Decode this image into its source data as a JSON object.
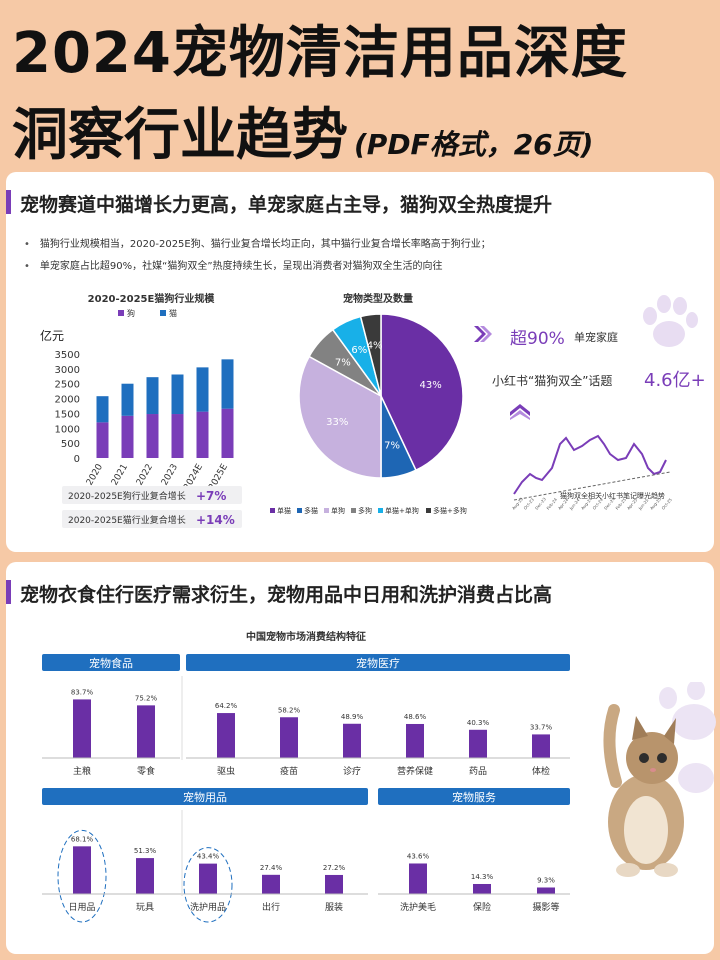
{
  "header": {
    "title_line1": "2024宠物清洁用品深度",
    "title_line2": "洞察行业趋势",
    "title_suffix": "(PDF格式，26页)"
  },
  "section1": {
    "heading": "宠物赛道中猫增长力更高，单宠家庭占主导，猫狗双全热度提升",
    "bullets": [
      "猫狗行业规模相当，2020-2025E狗、猫行业复合增长均正向，其中猫行业复合增长率略高于狗行业；",
      "单宠家庭占比超90%，社媒“猫狗双全”热度持续生长，呈现出消费者对猫狗双全生活的向往"
    ],
    "bar_notes": [
      {
        "text": "2020-2025E狗行业复合增长",
        "value": "+7%"
      },
      {
        "text": "2020-2025E猫行业复合增长",
        "value": "+14%"
      }
    ],
    "stats": {
      "single_prefix": "超90%",
      "single_label": "单宠家庭",
      "xhs_label": "小红书“猫狗双全”话题",
      "xhs_value": "4.6亿+",
      "trend_label": "猫狗双全相关小红书笔记曝光趋势",
      "trend_xticks": [
        "Aug-23",
        "Oct-23",
        "Dec-23",
        "Feb-24",
        "Apr-24",
        "Jun-24",
        "Aug-24",
        "Oct-24",
        "Dec-24",
        "Feb-25",
        "Apr-25",
        "Jun-25",
        "Aug-25",
        "Oct-25"
      ]
    }
  },
  "chart_data": [
    {
      "type": "bar",
      "title": "2020-2025E猫狗行业规模",
      "ylabel": "亿元",
      "categories": [
        "2020",
        "2021",
        "2022",
        "2023",
        "2024E",
        "2025E"
      ],
      "ylim": [
        0,
        3500
      ],
      "yticks": [
        0,
        500,
        1000,
        1500,
        2000,
        2500,
        3000,
        3500
      ],
      "stacked": true,
      "series": [
        {
          "name": "狗",
          "color": "#7a3db8",
          "values": [
            1200,
            1420,
            1480,
            1480,
            1560,
            1660
          ]
        },
        {
          "name": "猫",
          "color": "#1f6fbf",
          "values": [
            880,
            1080,
            1240,
            1330,
            1490,
            1660
          ]
        }
      ]
    },
    {
      "type": "pie",
      "title": "宠物类型及数量",
      "slices": [
        {
          "name": "单猫",
          "value": 43,
          "label": "43%",
          "color": "#6a2fa5"
        },
        {
          "name": "多猫",
          "value": 7,
          "label": "7%",
          "color": "#1e66b4"
        },
        {
          "name": "单狗",
          "value": 33,
          "label": "33%",
          "color": "#c6b1de"
        },
        {
          "name": "多狗",
          "value": 7,
          "label": "7%",
          "color": "#828282"
        },
        {
          "name": "单猫+单狗",
          "value": 6,
          "label": "6%",
          "color": "#18b0e8"
        },
        {
          "name": "多猫+多狗",
          "value": 4,
          "label": "4%",
          "color": "#3a3a3a"
        }
      ]
    },
    {
      "type": "bar",
      "title": "中国宠物市场消费结构特征",
      "groups": [
        {
          "name": "宠物食品",
          "categories": [
            "主粮",
            "零食"
          ],
          "values": [
            83.7,
            75.2
          ],
          "labels": [
            "83.7%",
            "75.2%"
          ]
        },
        {
          "name": "宠物医疗",
          "categories": [
            "驱虫",
            "疫苗",
            "诊疗",
            "营养保健",
            "药品",
            "体检"
          ],
          "values": [
            64.2,
            58.2,
            48.9,
            48.6,
            40.3,
            33.7
          ],
          "labels": [
            "64.2%",
            "58.2%",
            "48.9%",
            "48.6%",
            "40.3%",
            "33.7%"
          ]
        },
        {
          "name": "宠物用品",
          "categories": [
            "日用品",
            "玩具",
            "洗护用品",
            "出行",
            "服装"
          ],
          "values": [
            68.1,
            51.3,
            43.4,
            27.4,
            27.2
          ],
          "labels": [
            "68.1%",
            "51.3%",
            "43.4%",
            "27.4%",
            "27.2%"
          ]
        },
        {
          "name": "宠物服务",
          "categories": [
            "洗护美毛",
            "保险",
            "摄影等"
          ],
          "values": [
            43.6,
            14.3,
            9.3
          ],
          "labels": [
            "43.6%",
            "14.3%",
            "9.3%"
          ]
        }
      ],
      "highlighted": [
        "日用品",
        "洗护用品"
      ]
    }
  ],
  "section2": {
    "heading": "宠物衣食住行医疗需求衍生，宠物用品中日用和洗护消费占比高"
  },
  "colors": {
    "purple": "#7a3db8",
    "blue": "#1f6fbf",
    "peach": "#f6c9a6"
  }
}
